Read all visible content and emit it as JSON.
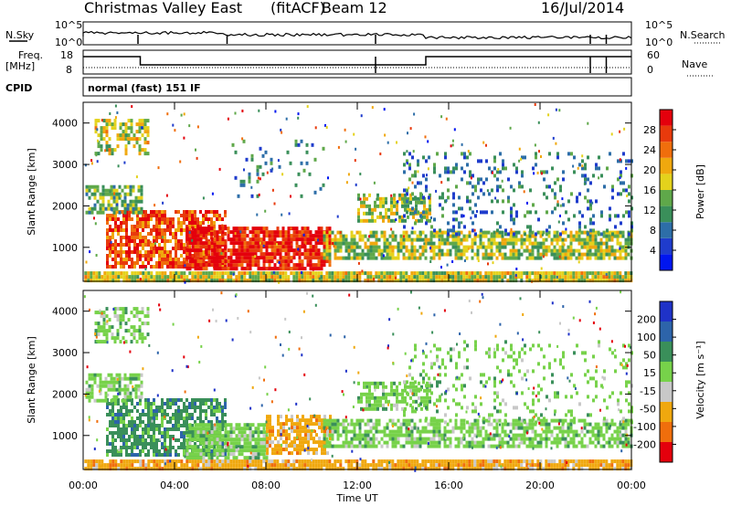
{
  "header": {
    "station": "Christmas Valley East",
    "mode": "(fitACF)",
    "beam": "Beam 12",
    "date": "16/Jul/2014"
  },
  "strip": {
    "nsky": "N.Sky",
    "nsearch": "N.Search",
    "freq_line1": "Freq.",
    "freq_line2": "[MHz]",
    "nave": "Nave",
    "cpid": "CPID",
    "cpid_value": "normal (fast) 151 IF",
    "noise_left_ticks": [
      "10^5",
      "10^0"
    ],
    "noise_right_ticks": [
      "10^5",
      "10^0"
    ],
    "freq_ticks": [
      "18",
      "8"
    ],
    "nave_ticks": [
      "60",
      "0"
    ]
  },
  "chart_data": [
    {
      "type": "heatmap",
      "name": "power",
      "xlabel": "",
      "ylabel": "Slant Range [km]",
      "xlim": [
        0,
        24
      ],
      "ylim": [
        180,
        4500
      ],
      "yticks": [
        1000,
        2000,
        3000,
        4000
      ],
      "colorbar": {
        "label": "Power [dB]",
        "range": [
          0,
          32
        ],
        "ticks": [
          "4",
          "8",
          "12",
          "16",
          "20",
          "24",
          "28"
        ],
        "colors": [
          "#0016f0",
          "#1f3ccc",
          "#2d6ea8",
          "#3a8f5a",
          "#5fa84a",
          "#e4d21c",
          "#f0a80e",
          "#f06e0c",
          "#e83a0c",
          "#e4000c"
        ]
      },
      "bands": [
        {
          "t0": 0.05,
          "t1": 24.0,
          "r0": 180,
          "r1": 420,
          "lvl": 0.55,
          "fill": 0.95
        },
        {
          "t0": 1.0,
          "t1": 6.2,
          "r0": 500,
          "r1": 1900,
          "lvl": 0.82,
          "fill": 0.75
        },
        {
          "t0": 4.5,
          "t1": 10.8,
          "r0": 450,
          "r1": 1500,
          "lvl": 0.9,
          "fill": 0.85
        },
        {
          "t0": 0.1,
          "t1": 2.6,
          "r0": 1850,
          "r1": 2500,
          "lvl": 0.42,
          "fill": 0.65
        },
        {
          "t0": 0.5,
          "t1": 2.9,
          "r0": 3300,
          "r1": 4100,
          "lvl": 0.55,
          "fill": 0.55
        },
        {
          "t0": 10.5,
          "t1": 24.0,
          "r0": 700,
          "r1": 1400,
          "lvl": 0.5,
          "fill": 0.7
        },
        {
          "t0": 12.0,
          "t1": 15.2,
          "r0": 1600,
          "r1": 2300,
          "lvl": 0.5,
          "fill": 0.65
        },
        {
          "t0": 14.0,
          "t1": 24.0,
          "r0": 1300,
          "r1": 3300,
          "lvl": 0.28,
          "fill": 0.18
        },
        {
          "t0": 6.5,
          "t1": 10.5,
          "r0": 2200,
          "r1": 3600,
          "lvl": 0.3,
          "fill": 0.08
        }
      ]
    },
    {
      "type": "heatmap",
      "name": "velocity",
      "xlabel": "Time UT",
      "ylabel": "Slant Range [km]",
      "xlim": [
        0,
        24
      ],
      "ylim": [
        180,
        4500
      ],
      "xticks": [
        "00:00",
        "04:00",
        "08:00",
        "12:00",
        "16:00",
        "20:00",
        "00:00"
      ],
      "yticks": [
        1000,
        2000,
        3000,
        4000
      ],
      "colorbar": {
        "label": "Velocity [m s⁻¹]",
        "range": [
          -250,
          250
        ],
        "ticks": [
          "200",
          "100",
          "50",
          "15",
          "-15",
          "-50",
          "-100",
          "-200"
        ],
        "colors": [
          "#1f32c8",
          "#2d64aa",
          "#3a8f5a",
          "#77d24a",
          "#c8c8c8",
          "#f0a80e",
          "#f06e0c",
          "#e4000c"
        ]
      },
      "bands": [
        {
          "t0": 0.05,
          "t1": 24.0,
          "r0": 180,
          "r1": 420,
          "vel": "-50",
          "fill": 0.9
        },
        {
          "t0": 1.0,
          "t1": 6.2,
          "r0": 500,
          "r1": 1900,
          "vel": "50",
          "fill": 0.7
        },
        {
          "t0": 4.5,
          "t1": 8.0,
          "r0": 450,
          "r1": 1300,
          "vel": "15",
          "fill": 0.8
        },
        {
          "t0": 8.0,
          "t1": 10.8,
          "r0": 600,
          "r1": 1500,
          "vel": "-50",
          "fill": 0.75
        },
        {
          "t0": 0.1,
          "t1": 2.6,
          "r0": 1850,
          "r1": 2500,
          "vel": "15",
          "fill": 0.6
        },
        {
          "t0": 0.5,
          "t1": 2.9,
          "r0": 3300,
          "r1": 4100,
          "vel": "15",
          "fill": 0.5
        },
        {
          "t0": 10.5,
          "t1": 24.0,
          "r0": 700,
          "r1": 1400,
          "vel": "15",
          "fill": 0.65
        },
        {
          "t0": 12.0,
          "t1": 15.2,
          "r0": 1600,
          "r1": 2300,
          "vel": "15",
          "fill": 0.6
        },
        {
          "t0": 14.0,
          "t1": 24.0,
          "r0": 1300,
          "r1": 3300,
          "vel": "15",
          "fill": 0.15
        }
      ]
    }
  ]
}
